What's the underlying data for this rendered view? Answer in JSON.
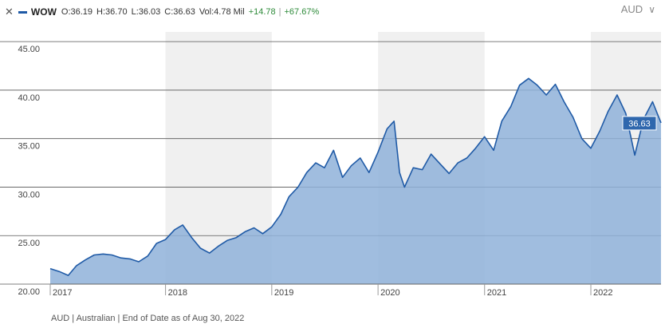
{
  "header": {
    "close_icon": "close-icon",
    "series_swatch_color": "#1f5aa6",
    "ticker": "WOW",
    "open": "O:36.19",
    "high": "H:36.70",
    "low": "L:36.03",
    "close": "C:36.63",
    "volume": "Vol:4.78 Mil",
    "change": "+14.78",
    "change_separator": "|",
    "change_pct": "+67.67%",
    "positive_color": "#2e8b3a"
  },
  "currency_selector": {
    "value": "AUD",
    "icon": "chevron-down-icon"
  },
  "footer": {
    "text": "AUD | Australian | End of Date as of Aug 30, 2022"
  },
  "chart_data": {
    "type": "area",
    "series": [
      {
        "line_color": "#1f5aa6",
        "fill_color": "#8fb2d9",
        "x": [
          "2016-12-01",
          "2017-01-01",
          "2017-02-01",
          "2017-03-01",
          "2017-04-01",
          "2017-05-01",
          "2017-06-01",
          "2017-07-01",
          "2017-08-01",
          "2017-09-01",
          "2017-10-01",
          "2017-11-01",
          "2017-12-01",
          "2018-01-01",
          "2018-02-01",
          "2018-03-01",
          "2018-04-01",
          "2018-05-01",
          "2018-06-01",
          "2018-07-01",
          "2018-08-01",
          "2018-09-01",
          "2018-10-01",
          "2018-11-01",
          "2018-12-01",
          "2019-01-01",
          "2019-02-01",
          "2019-03-01",
          "2019-04-01",
          "2019-05-01",
          "2019-06-01",
          "2019-07-01",
          "2019-08-01",
          "2019-09-01",
          "2019-10-01",
          "2019-11-01",
          "2019-12-01",
          "2020-01-01",
          "2020-02-01",
          "2020-02-25",
          "2020-03-15",
          "2020-04-01",
          "2020-05-01",
          "2020-06-01",
          "2020-07-01",
          "2020-08-01",
          "2020-09-01",
          "2020-10-01",
          "2020-11-01",
          "2020-12-01",
          "2021-01-01",
          "2021-02-01",
          "2021-03-01",
          "2021-04-01",
          "2021-05-01",
          "2021-06-01",
          "2021-07-01",
          "2021-08-01",
          "2021-09-01",
          "2021-10-01",
          "2021-11-01",
          "2021-12-01",
          "2022-01-01",
          "2022-02-01",
          "2022-03-01",
          "2022-04-01",
          "2022-05-01",
          "2022-06-01",
          "2022-07-01",
          "2022-08-01",
          "2022-08-30"
        ],
        "values": [
          21.6,
          21.3,
          20.9,
          21.9,
          22.5,
          23.0,
          23.1,
          23.0,
          22.7,
          22.6,
          22.3,
          22.9,
          24.2,
          24.6,
          25.6,
          26.1,
          24.8,
          23.7,
          23.2,
          23.9,
          24.5,
          24.8,
          25.4,
          25.8,
          25.2,
          25.9,
          27.2,
          29.0,
          30.0,
          31.5,
          32.5,
          32.0,
          33.8,
          31.0,
          32.2,
          33.0,
          31.5,
          33.6,
          36.0,
          36.8,
          31.5,
          30.0,
          32.0,
          31.8,
          33.4,
          32.4,
          31.4,
          32.5,
          33.0,
          34.0,
          35.2,
          33.8,
          36.8,
          38.3,
          40.5,
          41.2,
          40.5,
          39.5,
          40.6,
          38.8,
          37.2,
          35.0,
          34.0,
          35.8,
          37.8,
          39.5,
          37.6,
          33.3,
          37.0,
          38.8,
          36.63
        ]
      }
    ],
    "last_value_label": "36.63",
    "xlim": [
      "2016-12-01",
      "2022-08-30"
    ],
    "ylim": [
      20.0,
      46.0
    ],
    "yticks": [
      "45.00",
      "40.00",
      "35.00",
      "30.00",
      "25.00",
      "20.00"
    ],
    "ytick_values": [
      45,
      40,
      35,
      30,
      25,
      20
    ],
    "xticks": [
      "2017",
      "2018",
      "2019",
      "2020",
      "2021",
      "2022"
    ],
    "xtick_dates": [
      "2016-12-01",
      "2018-01-01",
      "2019-01-01",
      "2020-01-01",
      "2021-01-01",
      "2022-01-01"
    ],
    "shaded_years": [
      "2018",
      "2020",
      "2022"
    ],
    "grid": "horizontal",
    "legend": "none"
  }
}
